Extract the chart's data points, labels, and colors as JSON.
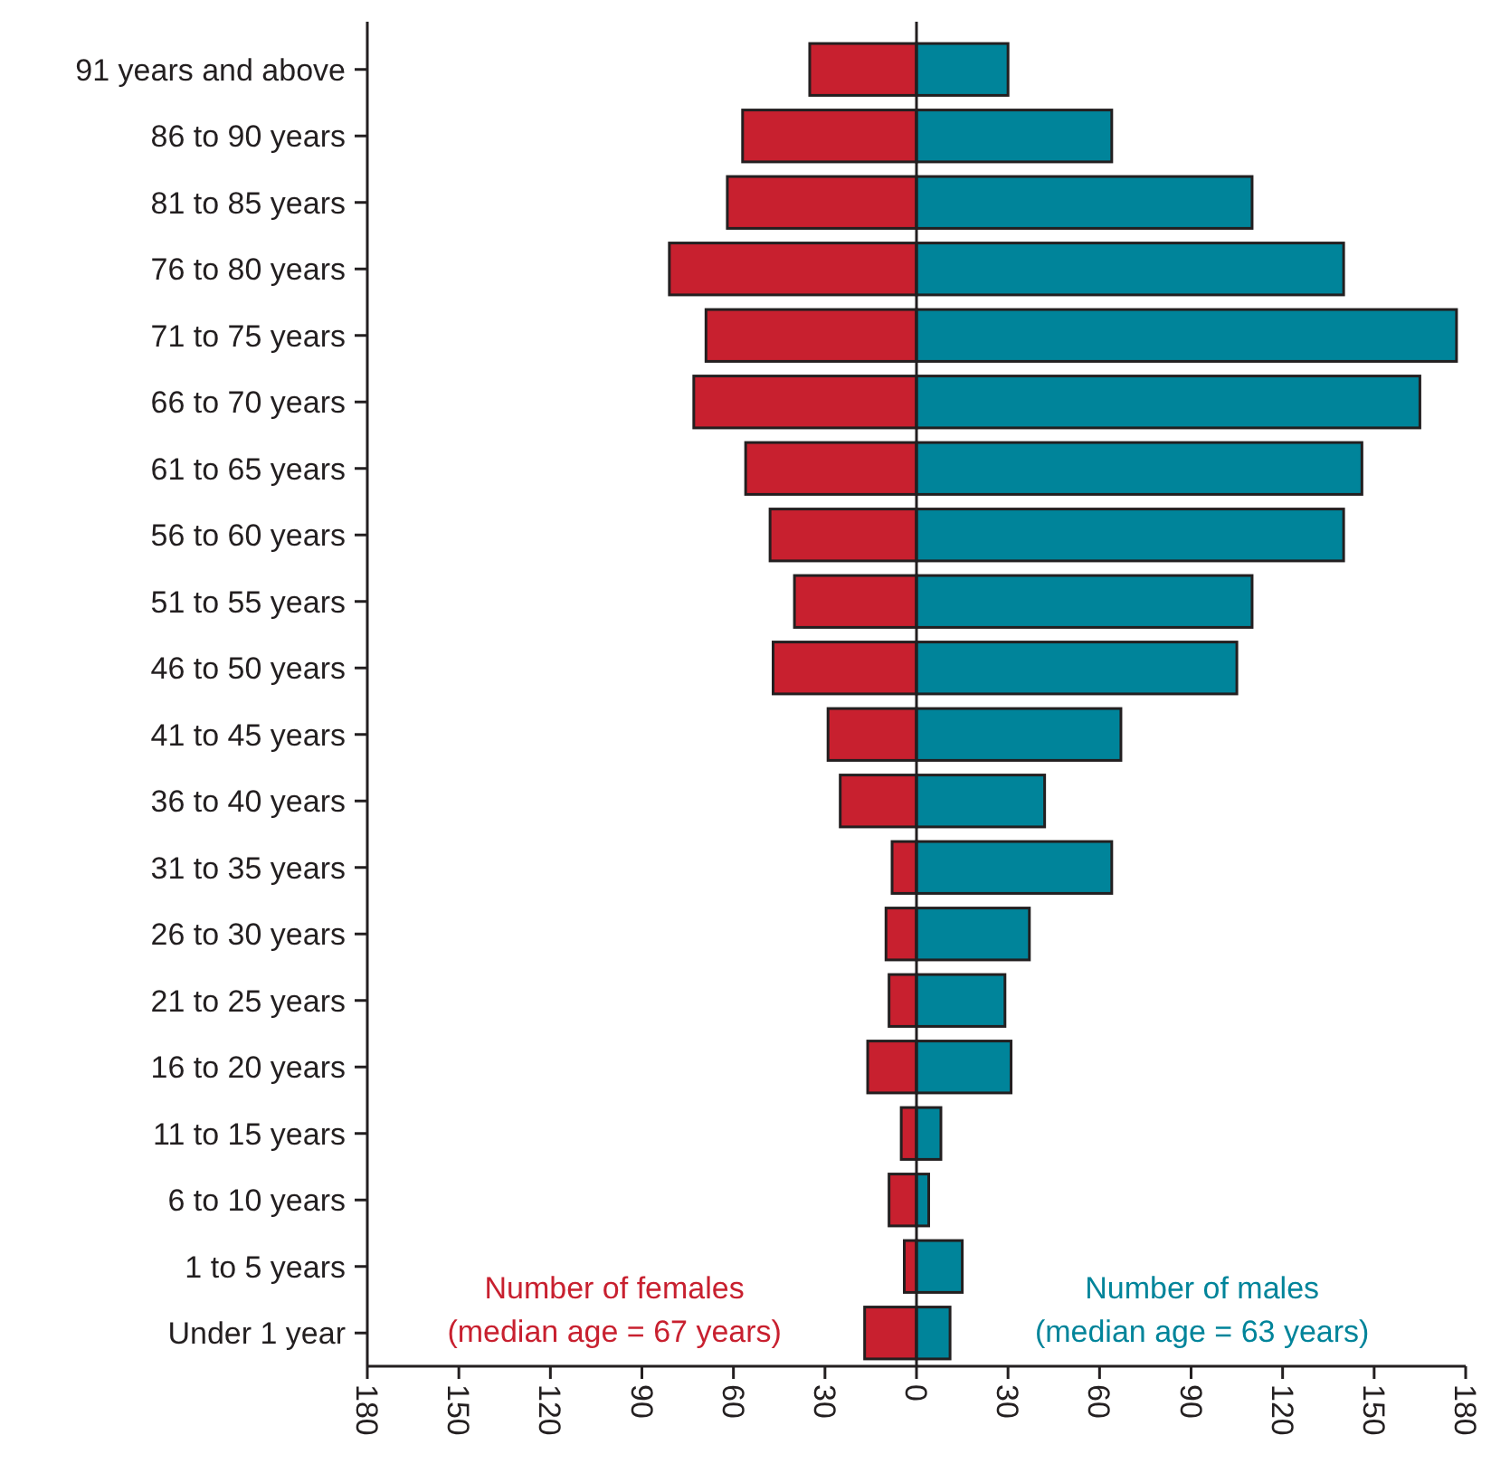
{
  "chart_data": {
    "type": "bar",
    "orientation": "horizontal",
    "stacked": true,
    "ref_lines": [
      {
        "axis": "x",
        "value": 0,
        "label": null
      }
    ],
    "categories": [
      "91 years and above",
      "86 to 90 years",
      "81 to 85 years",
      "76 to 80 years",
      "71 to 75 years",
      "66 to 70 years",
      "61 to 65 years",
      "56 to 60 years",
      "51 to 55 years",
      "46 to 50 years",
      "41 to 45 years",
      "36 to 40 years",
      "31 to 35 years",
      "26 to 30 years",
      "21 to 25 years",
      "16 to 20 years",
      "11 to 15 years",
      "6 to 10 years",
      "1 to 5 years",
      "Under 1 year"
    ],
    "series": [
      {
        "name": "Number of females\n(median age = 67 years)",
        "color": "#c8202f",
        "values": [
          -35,
          -57,
          -62,
          -81,
          -69,
          -73,
          -56,
          -48,
          -40,
          -47,
          -29,
          -25,
          -8,
          -10,
          -9,
          -16,
          -5,
          -9,
          -4,
          -17
        ]
      },
      {
        "name": "Number of males\n(median age = 63 years)",
        "color": "#00849a",
        "values": [
          30,
          64,
          110,
          140,
          177,
          165,
          146,
          140,
          110,
          105,
          67,
          42,
          64,
          37,
          29,
          31,
          8,
          4,
          15,
          11
        ]
      }
    ],
    "xlim": [
      -180,
      180
    ],
    "xticks": [
      {
        "value": -180,
        "label": "180"
      },
      {
        "value": -150,
        "label": "150"
      },
      {
        "value": -120,
        "label": "120"
      },
      {
        "value": -90,
        "label": "90"
      },
      {
        "value": -60,
        "label": "60"
      },
      {
        "value": -30,
        "label": "30"
      },
      0,
      30,
      60,
      90,
      120,
      150,
      180
    ],
    "grid": false
  }
}
